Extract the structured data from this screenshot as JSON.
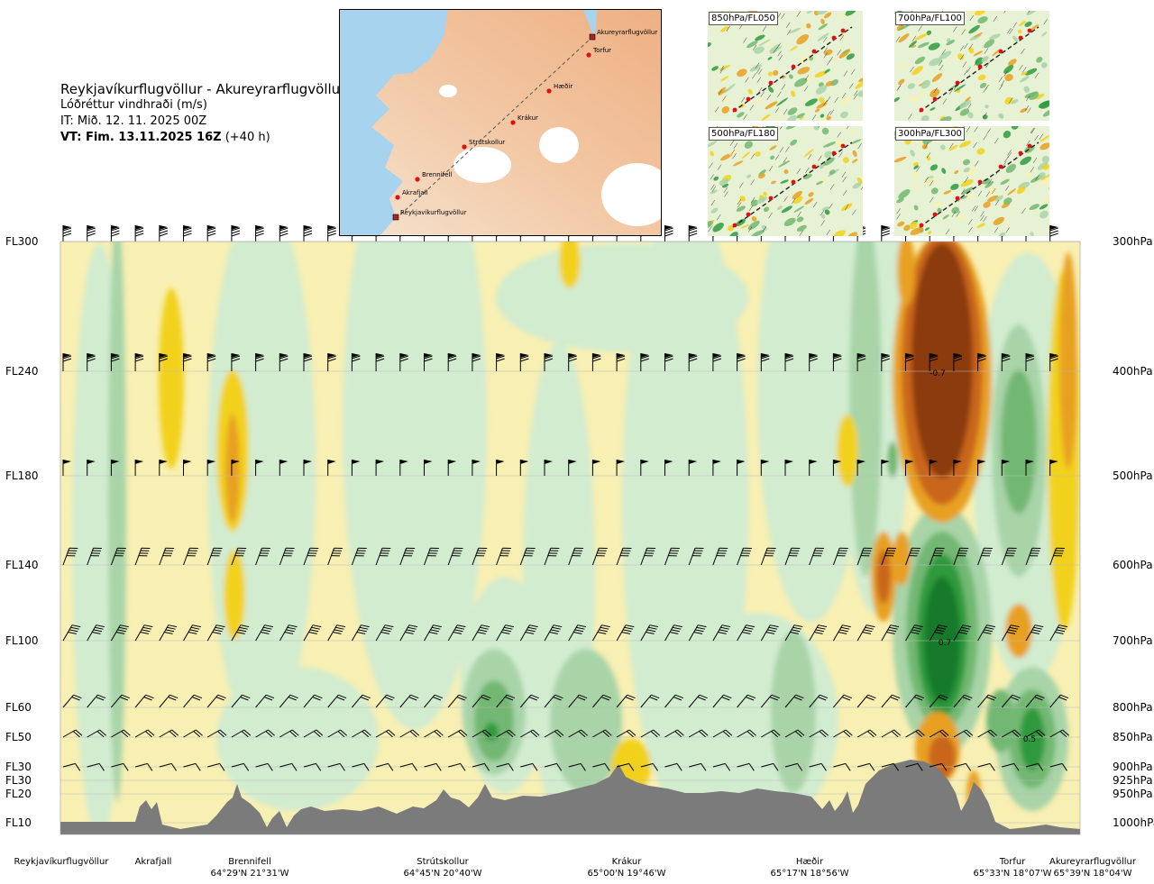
{
  "header": {
    "route_title": "Reykjavíkurflugvöllur - Akureyrarflugvöllur",
    "variable": "Lóðréttur vindhraði (m/s)",
    "issue_time": "IT: Mið. 12. 11. 2025 00Z",
    "valid_time_bold": "VT: Fim. 13.11.2025 16Z",
    "valid_time_offset": "(+40 h)"
  },
  "chart_data": {
    "type": "heatmap",
    "title": "Reykjavíkurflugvöllur - Akureyrarflugvöllur",
    "subtitle": "Lóðréttur vindhraði (m/s)",
    "left_axis_labels": [
      {
        "label": "FL300",
        "pressure": 300
      },
      {
        "label": "FL240",
        "pressure": 400
      },
      {
        "label": "FL180",
        "pressure": 500
      },
      {
        "label": "FL140",
        "pressure": 600
      },
      {
        "label": "FL100",
        "pressure": 700
      },
      {
        "label": "FL60",
        "pressure": 800
      },
      {
        "label": "FL50",
        "pressure": 850
      },
      {
        "label": "FL30",
        "pressure": 900
      },
      {
        "label": "FL30",
        "pressure": 925
      },
      {
        "label": "FL20",
        "pressure": 950
      },
      {
        "label": "FL10",
        "pressure": 1000
      }
    ],
    "right_axis_labels": [
      "300hPa",
      "400hPa",
      "500hPa",
      "600hPa",
      "700hPa",
      "800hPa",
      "850hPa",
      "900hPa",
      "925hPa",
      "950hPa",
      "1000hPa"
    ],
    "pressure_range": [
      300,
      1000
    ],
    "contour_annotations": [
      {
        "text": "-0.7",
        "pressure": 400
      },
      {
        "text": "0.7",
        "pressure": 700
      },
      {
        "text": "0.5",
        "pressure": 850
      }
    ],
    "locations": [
      {
        "name": "Reykjavíkurflugvöllur",
        "coord": ""
      },
      {
        "name": "Akrafjall",
        "coord": ""
      },
      {
        "name": "Brennifell",
        "coord": "64°29'N 21°31'W"
      },
      {
        "name": "Strútskollur",
        "coord": "64°45'N 20°40'W"
      },
      {
        "name": "Krákur",
        "coord": "65°00'N 19°46'W"
      },
      {
        "name": "Hæðir",
        "coord": "65°17'N 18°56'W"
      },
      {
        "name": "Torfur",
        "coord": "65°33'N 18°07'W"
      },
      {
        "name": "Akureyrarflugvöllur",
        "coord": "65°39'N 18°04'W"
      }
    ],
    "colors": {
      "strong_down": "#8b3a0f",
      "mod_down": "#c9661b",
      "weak_down": "#e8a020",
      "slight_down": "#f2d11a",
      "faint_down": "#f8f0b4",
      "neutral": "#fdfcec",
      "faint_up": "#d2ecd0",
      "slight_up": "#a8d4a8",
      "weak_up": "#72b872",
      "mod_up": "#2e9a3e",
      "strong_up": "#137a2a",
      "terrain": "#7b7b7b"
    }
  },
  "map": {
    "labels": [
      "Akureyrarflugvöllur",
      "Torfur",
      "Hæðir",
      "Krákur",
      "Strútskollur",
      "Brennifell",
      "Akrafjall",
      "Reykjavíkurflugvöllur"
    ]
  },
  "insets": [
    {
      "label": "850hPa/FL050"
    },
    {
      "label": "700hPa/FL100"
    },
    {
      "label": "500hPa/FL180"
    },
    {
      "label": "300hPa/FL300"
    }
  ]
}
